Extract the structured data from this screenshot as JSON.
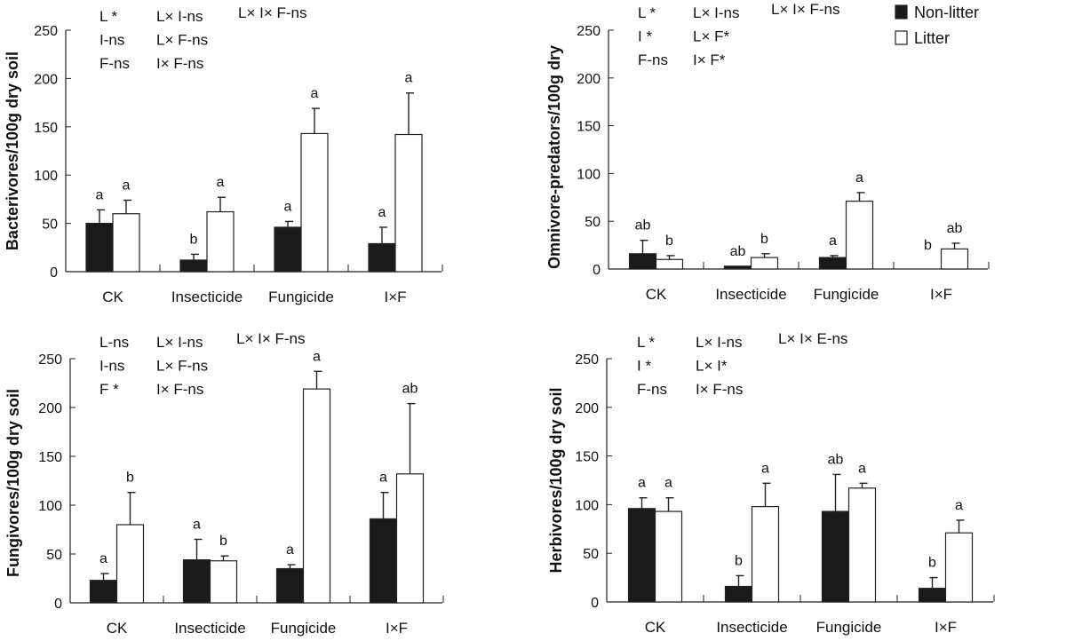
{
  "chart_data": [
    {
      "type": "bar",
      "categories": [
        "CK",
        "Insecticide",
        "Fungicide",
        "I×F"
      ],
      "ylabel": "Bacterivores/100g dry soil",
      "ylim": [
        0,
        250
      ],
      "yticks": [
        "0",
        "50",
        "100",
        "150",
        "200",
        "250"
      ],
      "series": [
        {
          "name": "Non-litter",
          "color": "#1a1a1a",
          "values": [
            50,
            12,
            46,
            29
          ],
          "errors": [
            14,
            6,
            6,
            17
          ],
          "letters": [
            "a",
            "b",
            "a",
            "a"
          ]
        },
        {
          "name": "Litter",
          "color": "#ffffff",
          "values": [
            60,
            62,
            143,
            142
          ],
          "errors": [
            14,
            15,
            26,
            43
          ],
          "letters": [
            "a",
            "a",
            "a",
            "a"
          ]
        }
      ],
      "annotations": [
        [
          "L *",
          "I-ns",
          "F-ns"
        ],
        [
          "L× I-ns",
          "L× F-ns",
          "I× F-ns"
        ],
        [
          "L× I× F-ns"
        ]
      ]
    },
    {
      "type": "bar",
      "categories": [
        "CK",
        "Insecticide",
        "Fungicide",
        "I×F"
      ],
      "ylabel": "Omnivore-predators/100g dry",
      "ylim": [
        0,
        250
      ],
      "yticks": [
        "0",
        "50",
        "100",
        "150",
        "200",
        "250"
      ],
      "legend": "top-right",
      "series": [
        {
          "name": "Non-litter",
          "color": "#1a1a1a",
          "values": [
            16,
            3,
            12,
            0
          ],
          "errors": [
            14,
            0,
            2,
            0
          ],
          "letters": [
            "ab",
            "ab",
            "a",
            "b"
          ]
        },
        {
          "name": "Litter",
          "color": "#ffffff",
          "values": [
            10,
            12,
            71,
            21
          ],
          "errors": [
            4,
            4,
            9,
            6
          ],
          "letters": [
            "b",
            "b",
            "a",
            "ab"
          ]
        }
      ],
      "annotations": [
        [
          "L *",
          "I *",
          "F-ns"
        ],
        [
          "L× I-ns",
          "L× F*",
          "I× F*"
        ],
        [
          "L× I× F-ns"
        ]
      ]
    },
    {
      "type": "bar",
      "categories": [
        "CK",
        "Insecticide",
        "Fungicide",
        "I×F"
      ],
      "ylabel": "Fungivores/100g dry soil",
      "ylim": [
        0,
        250
      ],
      "yticks": [
        "0",
        "50",
        "100",
        "150",
        "200",
        "250"
      ],
      "series": [
        {
          "name": "Non-litter",
          "color": "#1a1a1a",
          "values": [
            23,
            44,
            35,
            86
          ],
          "errors": [
            7,
            21,
            4,
            27
          ],
          "letters": [
            "a",
            "a",
            "a",
            "a"
          ]
        },
        {
          "name": "Litter",
          "color": "#ffffff",
          "values": [
            80,
            43,
            219,
            132
          ],
          "errors": [
            33,
            5,
            18,
            72
          ],
          "letters": [
            "b",
            "b",
            "a",
            "ab"
          ]
        }
      ],
      "annotations": [
        [
          "L-ns",
          "I-ns",
          "F *"
        ],
        [
          "L× I-ns",
          "L× F-ns",
          "I× F-ns"
        ],
        [
          "L× I× F-ns"
        ]
      ]
    },
    {
      "type": "bar",
      "categories": [
        "CK",
        "Insecticide",
        "Fungicide",
        "I×F"
      ],
      "ylabel": "Herbivores/100g dry soil",
      "ylim": [
        0,
        250
      ],
      "yticks": [
        "0",
        "50",
        "100",
        "150",
        "200",
        "250"
      ],
      "series": [
        {
          "name": "Non-litter",
          "color": "#1a1a1a",
          "values": [
            96,
            16,
            93,
            14
          ],
          "errors": [
            11,
            11,
            38,
            11
          ],
          "letters": [
            "a",
            "b",
            "ab",
            "b"
          ]
        },
        {
          "name": "Litter",
          "color": "#ffffff",
          "values": [
            93,
            98,
            117,
            71
          ],
          "errors": [
            14,
            24,
            5,
            13
          ],
          "letters": [
            "a",
            "a",
            "a",
            "a"
          ]
        }
      ],
      "annotations": [
        [
          "L *",
          "I *",
          "F-ns"
        ],
        [
          "L× I-ns",
          "L× I*",
          "I× F-ns"
        ],
        [
          "L× I× E-ns"
        ]
      ]
    }
  ]
}
